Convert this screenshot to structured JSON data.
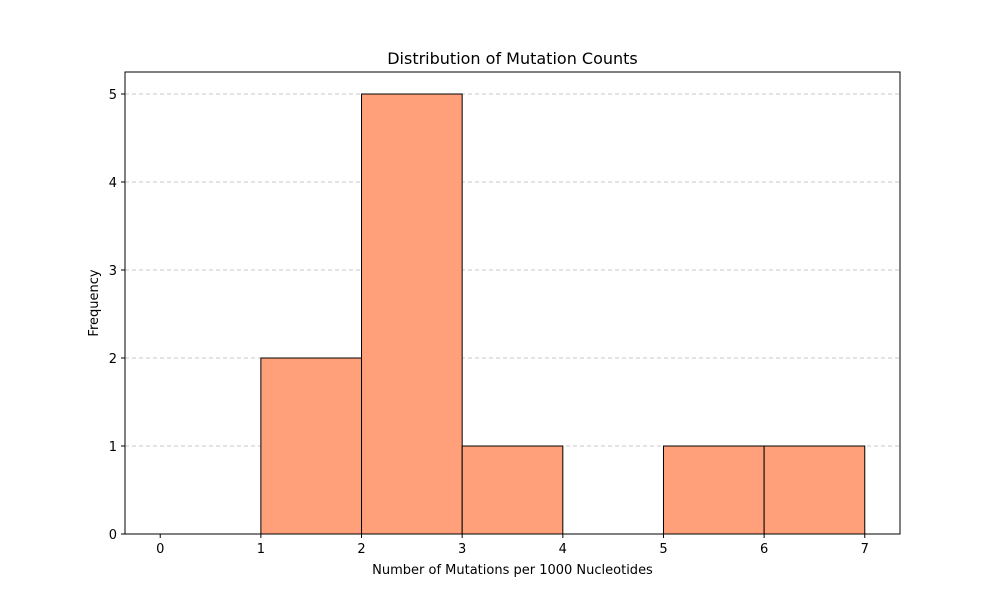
{
  "chart_data": {
    "type": "bar",
    "title": "Distribution of Mutation Counts",
    "xlabel": "Number of Mutations per 1000 Nucleotides",
    "ylabel": "Frequency",
    "bins": [
      {
        "start": 0,
        "end": 1,
        "count": 0
      },
      {
        "start": 1,
        "end": 2,
        "count": 2
      },
      {
        "start": 2,
        "end": 3,
        "count": 5
      },
      {
        "start": 3,
        "end": 4,
        "count": 1
      },
      {
        "start": 4,
        "end": 5,
        "count": 0
      },
      {
        "start": 5,
        "end": 6,
        "count": 1
      },
      {
        "start": 6,
        "end": 7,
        "count": 1
      }
    ],
    "x_ticks": [
      "0",
      "1",
      "2",
      "3",
      "4",
      "5",
      "6",
      "7"
    ],
    "y_ticks": [
      "0",
      "1",
      "2",
      "3",
      "4",
      "5"
    ],
    "xlim": [
      -0.35,
      7.35
    ],
    "ylim": [
      0,
      5.25
    ],
    "grid": {
      "axis": "y",
      "style": "dashed"
    },
    "colors": {
      "bar_fill": "#ffa07a",
      "bar_edge": "#000000",
      "grid": "#c8c8c8"
    }
  }
}
